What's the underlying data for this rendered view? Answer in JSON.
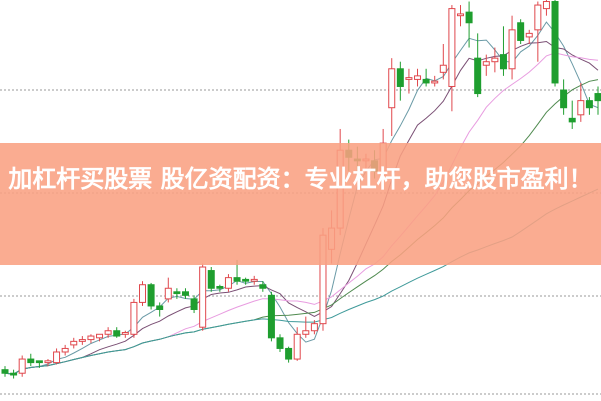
{
  "headline": "加杠杆买股票 股亿资配资：专业杠杆，助您股市盈利！",
  "colors": {
    "banner": "#f9a082",
    "up": "#e0474c",
    "down": "#1f9e2f",
    "grid": "#999999",
    "ma": [
      "#6a9aa6",
      "#7a4f74",
      "#e89ce0",
      "#4f8a4f",
      "#3f9a9a"
    ]
  },
  "chart_data": {
    "type": "candlestick",
    "grid": "horizontal dashed",
    "moving_average_periods": [
      5,
      10,
      20,
      30,
      60
    ],
    "candles_ohlc": [
      [
        8,
        9,
        6,
        7
      ],
      [
        7,
        8,
        5.5,
        6.5
      ],
      [
        7,
        12,
        6,
        11
      ],
      [
        11,
        12.5,
        9,
        10
      ],
      [
        10.5,
        10.5,
        8.5,
        10
      ],
      [
        10,
        11,
        9,
        10.5
      ],
      [
        10,
        14,
        9.5,
        13
      ],
      [
        13,
        15,
        12,
        14
      ],
      [
        15,
        17,
        14,
        16
      ],
      [
        16,
        17.5,
        15,
        16.5
      ],
      [
        16.5,
        18,
        15.5,
        17.5
      ],
      [
        17,
        18,
        16,
        18
      ],
      [
        18,
        20,
        17,
        19
      ],
      [
        19,
        20,
        17,
        17.5
      ],
      [
        18,
        19,
        17,
        18.5
      ],
      [
        18,
        28,
        17,
        27
      ],
      [
        27,
        33,
        26,
        32
      ],
      [
        32,
        32.5,
        25,
        26
      ],
      [
        26,
        27,
        23,
        25
      ],
      [
        28,
        34,
        27,
        31
      ],
      [
        30,
        31,
        28,
        29.5
      ],
      [
        30,
        31,
        28,
        29
      ],
      [
        28,
        29,
        24,
        25
      ],
      [
        20,
        38,
        19,
        37
      ],
      [
        36,
        37,
        30,
        31
      ],
      [
        31.5,
        32,
        30,
        31
      ],
      [
        31,
        35,
        30,
        34
      ],
      [
        34,
        39,
        32,
        33
      ],
      [
        33.5,
        34,
        32,
        33
      ],
      [
        33,
        34.5,
        32,
        33.5
      ],
      [
        32,
        33,
        30,
        31
      ],
      [
        29,
        30,
        16,
        17
      ],
      [
        17,
        18,
        13,
        14
      ],
      [
        14,
        14.5,
        10,
        11
      ],
      [
        11,
        20,
        10.5,
        18
      ],
      [
        18,
        23,
        17,
        19
      ],
      [
        19,
        22,
        18,
        21
      ],
      [
        21,
        48,
        19,
        46
      ],
      [
        42,
        53,
        38,
        48
      ],
      [
        48,
        76,
        46,
        70
      ],
      [
        70,
        73,
        64,
        68
      ],
      [
        67.5,
        71,
        63,
        67
      ],
      [
        67,
        69,
        64,
        67.5
      ],
      [
        67,
        70,
        62,
        64
      ],
      [
        63,
        76,
        60,
        72
      ],
      [
        82,
        96,
        74,
        93
      ],
      [
        93,
        95,
        84,
        88
      ],
      [
        90,
        93,
        86,
        90.5
      ],
      [
        90,
        93,
        88,
        91
      ],
      [
        90,
        93,
        88,
        89
      ],
      [
        89,
        91,
        88,
        89.5
      ],
      [
        92,
        100,
        90,
        94
      ],
      [
        88,
        111,
        81,
        110
      ],
      [
        108,
        111,
        105,
        108.5
      ],
      [
        109,
        112,
        99,
        106
      ],
      [
        96,
        103,
        85,
        86
      ],
      [
        94,
        97,
        91,
        95
      ],
      [
        95,
        99,
        92,
        96
      ],
      [
        97,
        105,
        91,
        93
      ],
      [
        93,
        108,
        90,
        104
      ],
      [
        106,
        107,
        100,
        101
      ],
      [
        102,
        104,
        100,
        103
      ],
      [
        104,
        112,
        95,
        111
      ],
      [
        110,
        113,
        108,
        112
      ],
      [
        112,
        113,
        88,
        89
      ],
      [
        87,
        90,
        80,
        82
      ],
      [
        79,
        84,
        76,
        78
      ],
      [
        80,
        89,
        78,
        84
      ],
      [
        84,
        85,
        80,
        82
      ],
      [
        86,
        88,
        80,
        84
      ]
    ]
  }
}
